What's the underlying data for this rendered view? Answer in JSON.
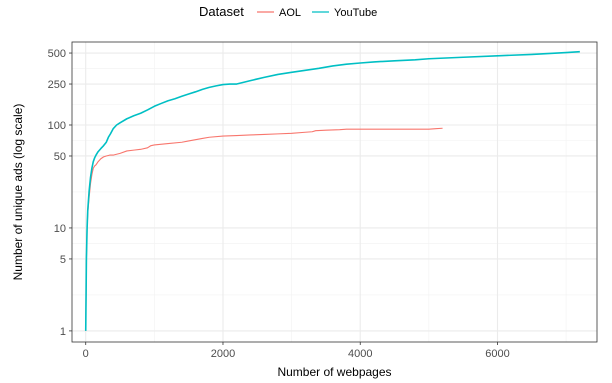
{
  "chart_data": {
    "type": "line",
    "title": "",
    "xlabel": "Number of webpages",
    "ylabel": "Number of unique ads (log scale)",
    "xlim": [
      -200,
      7450
    ],
    "ylim": [
      0.78,
      640
    ],
    "y_scale": "log",
    "grid": true,
    "x_ticks": [
      0,
      2000,
      4000,
      6000
    ],
    "x_tick_labels": [
      "0",
      "2000",
      "4000",
      "6000"
    ],
    "y_ticks": [
      1,
      5,
      10,
      50,
      100,
      250,
      500
    ],
    "y_tick_labels": [
      "1",
      "5",
      "10",
      "50",
      "100",
      "250",
      "500"
    ],
    "legend": {
      "title": "Dataset",
      "position": "top",
      "entries": [
        "AOL",
        "YouTube"
      ]
    },
    "series": [
      {
        "name": "AOL",
        "color": "#F8766D",
        "x": [
          0,
          10,
          20,
          30,
          50,
          70,
          90,
          110,
          130,
          150,
          180,
          220,
          260,
          300,
          350,
          400,
          450,
          500,
          600,
          700,
          800,
          900,
          950,
          1000,
          1200,
          1400,
          1500,
          1600,
          1700,
          1800,
          2000,
          2200,
          2400,
          2600,
          2800,
          3000,
          3200,
          3300,
          3350,
          3500,
          3700,
          3800,
          4000,
          4500,
          5000,
          5100,
          5200
        ],
        "y": [
          1,
          5,
          10,
          14,
          20,
          27,
          33,
          38,
          40,
          41,
          44,
          47,
          49,
          50,
          51,
          51,
          52,
          53,
          56,
          57,
          58,
          60,
          63,
          64,
          66,
          68,
          70,
          72,
          74,
          76,
          78,
          79,
          80,
          81,
          82,
          83,
          85,
          86,
          88,
          89,
          90,
          91,
          91,
          91,
          91,
          92,
          93
        ]
      },
      {
        "name": "YouTube",
        "color": "#00BFC4",
        "x": [
          0,
          10,
          20,
          30,
          50,
          70,
          90,
          110,
          130,
          150,
          180,
          220,
          260,
          300,
          330,
          360,
          400,
          450,
          500,
          600,
          700,
          800,
          900,
          1000,
          1100,
          1200,
          1300,
          1400,
          1500,
          1600,
          1700,
          1800,
          1900,
          2000,
          2100,
          2200,
          2400,
          2600,
          2800,
          3000,
          3200,
          3400,
          3600,
          3800,
          4000,
          4200,
          4500,
          4800,
          5000,
          5500,
          6000,
          6500,
          7000,
          7200
        ],
        "y": [
          1,
          5,
          10,
          15,
          23,
          31,
          38,
          44,
          48,
          51,
          55,
          59,
          63,
          68,
          76,
          82,
          92,
          100,
          105,
          115,
          123,
          130,
          140,
          152,
          162,
          172,
          180,
          190,
          200,
          210,
          222,
          232,
          240,
          247,
          250,
          250,
          270,
          290,
          310,
          325,
          340,
          355,
          375,
          390,
          400,
          410,
          420,
          430,
          440,
          455,
          470,
          485,
          505,
          515
        ]
      }
    ]
  }
}
